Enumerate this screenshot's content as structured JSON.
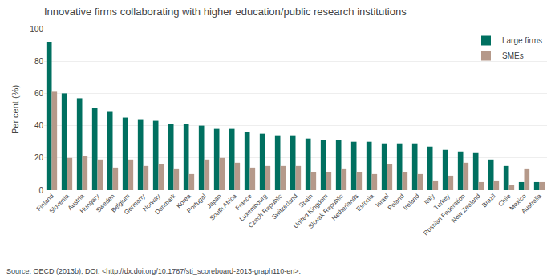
{
  "chart_data": {
    "type": "bar",
    "title": "Innovative firms collaborating with higher education/public research institutions",
    "ylabel": "Per cent (%)",
    "annotations": [
      "Source: OECD (2013b), DOI: <http://dx.doi.org/10.1787/sti_scoreboard-2013-graph110-en>."
    ],
    "categories": [
      "Finland",
      "Slovenia",
      "Austria",
      "Hungary",
      "Sweden",
      "Belgium",
      "Germany",
      "Norway",
      "Denmark",
      "Korea",
      "Portugal",
      "Japan",
      "South Africa",
      "France",
      "Luxembourg",
      "Czech Republic",
      "Switzerland",
      "Spain",
      "United Kingdom",
      "Slovak Republic",
      "Netherlands",
      "Estonia",
      "Israel",
      "Poland",
      "Ireland",
      "Italy",
      "Turkey",
      "Russian Federation",
      "New Zealand",
      "Brazil",
      "Chile",
      "Mexico",
      "Australia"
    ],
    "series": [
      {
        "name": "Large firms",
        "color": "#007060",
        "values": [
          92,
          60,
          57,
          51,
          49,
          45,
          44,
          43,
          41,
          41,
          40,
          38,
          38,
          36,
          35,
          34,
          34,
          32,
          31,
          31,
          30,
          30,
          29,
          29,
          29,
          27,
          25,
          24,
          23,
          19,
          15,
          5,
          5
        ]
      },
      {
        "name": "SMEs",
        "color": "#b5998a",
        "values": [
          61,
          20,
          21,
          19,
          14,
          19,
          15,
          16,
          13,
          10,
          19,
          20,
          17,
          14,
          15,
          15,
          15,
          11,
          11,
          13,
          11,
          10,
          16,
          11,
          10,
          6,
          9,
          17,
          5,
          6,
          3,
          13,
          5
        ]
      }
    ],
    "ylim": [
      0,
      100
    ],
    "yticks": [
      0,
      20,
      40,
      60,
      80,
      100
    ],
    "grid": true,
    "legend": "upper right"
  }
}
